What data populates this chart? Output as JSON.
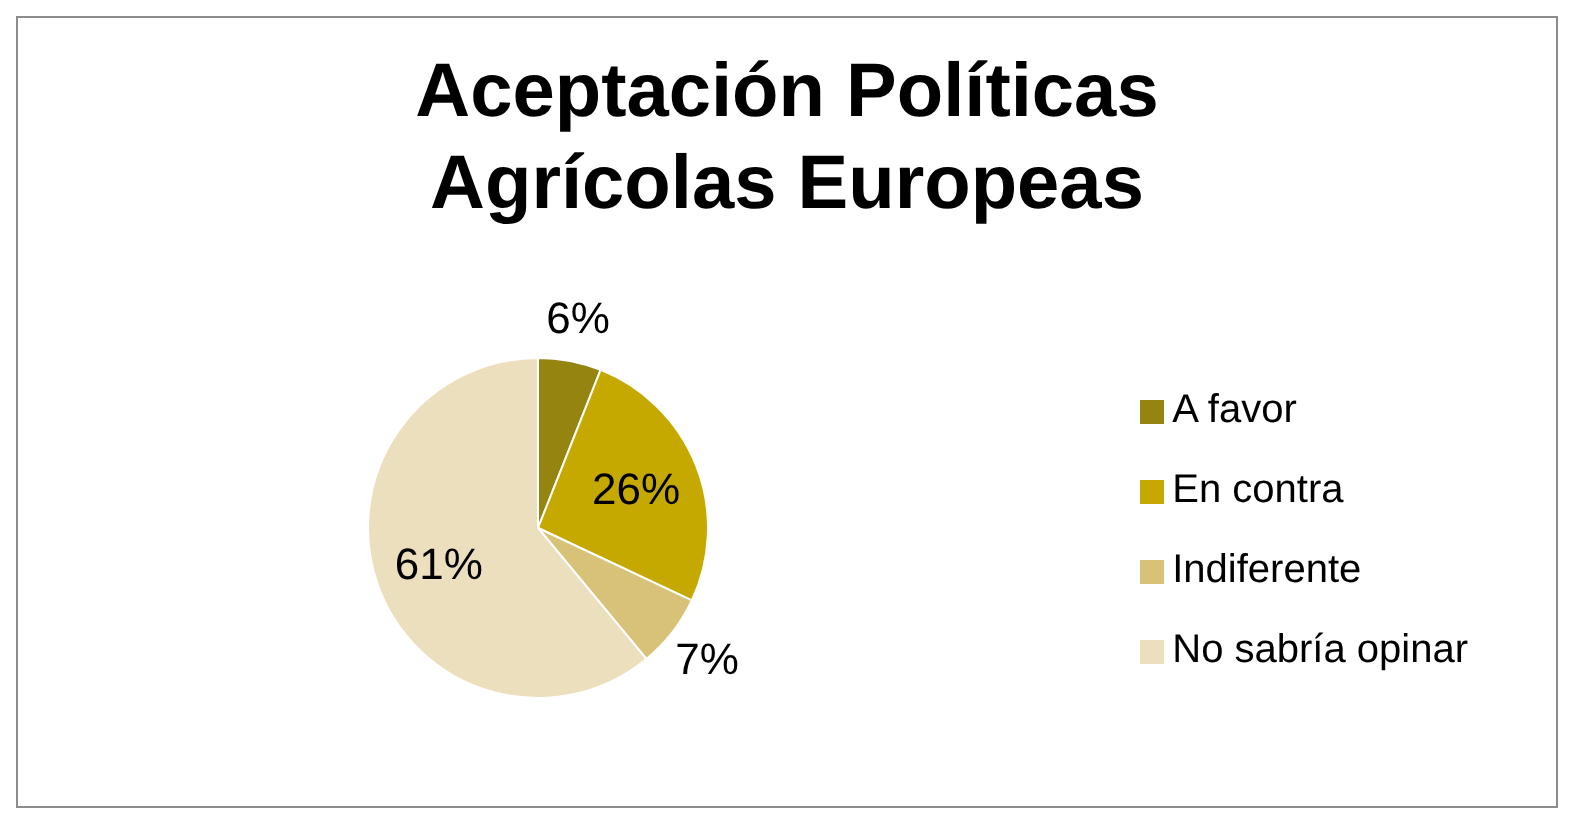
{
  "chart_data": {
    "type": "pie",
    "title": "Aceptación Políticas Agrícolas Europeas",
    "categories": [
      "A favor",
      "En contra",
      "Indiferente",
      "No sabría opinar"
    ],
    "values": [
      6,
      26,
      7,
      61
    ],
    "value_labels": [
      "6%",
      "26%",
      "7%",
      "61%"
    ],
    "colors": [
      "#958410",
      "#c6a900",
      "#d8c278",
      "#ecdfbd"
    ],
    "legend": "right"
  }
}
